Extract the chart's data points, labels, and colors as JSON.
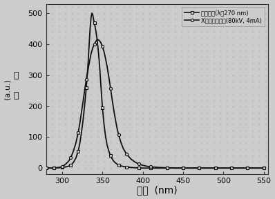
{
  "title": "",
  "xlabel": "波长",
  "xlabel_suffix": "  (nm)",
  "ylabel_chars": "强\n度",
  "ylabel_unit": "(a.u.)",
  "xlim": [
    280,
    555
  ],
  "ylim": [
    -20,
    530
  ],
  "xticks": [
    300,
    350,
    400,
    450,
    500,
    550
  ],
  "yticks": [
    0,
    100,
    200,
    300,
    400,
    500
  ],
  "legend1": "光致发光(λ＝270 nm)",
  "legend2": "X射线激发发光(80kV, 4mA)",
  "bg_color": "#d8d8d8",
  "line_color": "#111111",
  "pl_x": [
    280,
    285,
    290,
    293,
    296,
    299,
    302,
    305,
    308,
    311,
    314,
    317,
    320,
    322,
    324,
    326,
    328,
    330,
    332,
    333,
    334,
    335,
    336,
    337,
    338,
    339,
    340,
    341,
    342,
    343,
    344,
    345,
    346,
    347,
    348,
    350,
    352,
    354,
    356,
    358,
    360,
    362,
    364,
    366,
    368,
    370,
    373,
    376,
    380,
    385,
    390,
    395,
    400,
    410,
    420,
    430,
    440,
    450,
    460,
    470,
    480,
    490,
    500,
    510,
    520,
    530,
    540,
    550
  ],
  "pl_y": [
    0,
    0,
    0,
    1,
    1,
    2,
    3,
    4,
    6,
    10,
    18,
    32,
    55,
    80,
    115,
    155,
    205,
    260,
    330,
    375,
    420,
    460,
    488,
    500,
    495,
    480,
    468,
    455,
    440,
    422,
    400,
    375,
    345,
    310,
    270,
    195,
    140,
    100,
    72,
    54,
    40,
    30,
    22,
    17,
    13,
    10,
    7,
    5,
    3,
    2,
    1,
    1,
    0,
    0,
    0,
    0,
    0,
    0,
    0,
    0,
    0,
    0,
    0,
    0,
    0,
    0,
    0,
    0
  ],
  "xl_x": [
    280,
    285,
    290,
    293,
    296,
    299,
    302,
    305,
    308,
    311,
    314,
    317,
    320,
    322,
    324,
    326,
    328,
    330,
    332,
    334,
    336,
    338,
    340,
    342,
    344,
    346,
    348,
    350,
    352,
    354,
    356,
    358,
    360,
    362,
    364,
    366,
    368,
    370,
    373,
    376,
    380,
    385,
    390,
    395,
    400,
    405,
    410,
    420,
    430,
    440,
    450,
    460,
    470,
    480,
    490,
    500,
    510,
    520,
    530,
    540,
    550
  ],
  "xl_y": [
    0,
    0,
    0,
    1,
    2,
    4,
    8,
    14,
    22,
    35,
    55,
    80,
    115,
    145,
    180,
    215,
    252,
    285,
    315,
    345,
    370,
    388,
    400,
    410,
    415,
    412,
    405,
    392,
    375,
    352,
    325,
    292,
    258,
    222,
    188,
    158,
    130,
    108,
    82,
    62,
    45,
    30,
    20,
    13,
    9,
    6,
    4,
    2,
    1,
    0,
    0,
    0,
    0,
    0,
    0,
    0,
    0,
    0,
    0,
    0,
    0
  ],
  "pl_marker_x": [
    280,
    290,
    300,
    310,
    320,
    330,
    340,
    350,
    360,
    370,
    380,
    395,
    410,
    430,
    450,
    470,
    490,
    510,
    530,
    550
  ],
  "pl_marker_y": [
    0,
    0,
    2,
    10,
    55,
    260,
    468,
    195,
    40,
    10,
    3,
    1,
    0,
    0,
    0,
    0,
    0,
    0,
    0,
    0
  ],
  "xl_marker_x": [
    280,
    290,
    300,
    310,
    320,
    330,
    340,
    350,
    360,
    370,
    380,
    395,
    410,
    430,
    450,
    470,
    490,
    510,
    530,
    550
  ],
  "xl_marker_y": [
    0,
    0,
    4,
    35,
    115,
    285,
    400,
    392,
    258,
    108,
    45,
    13,
    4,
    1,
    0,
    0,
    0,
    0,
    0,
    0
  ]
}
